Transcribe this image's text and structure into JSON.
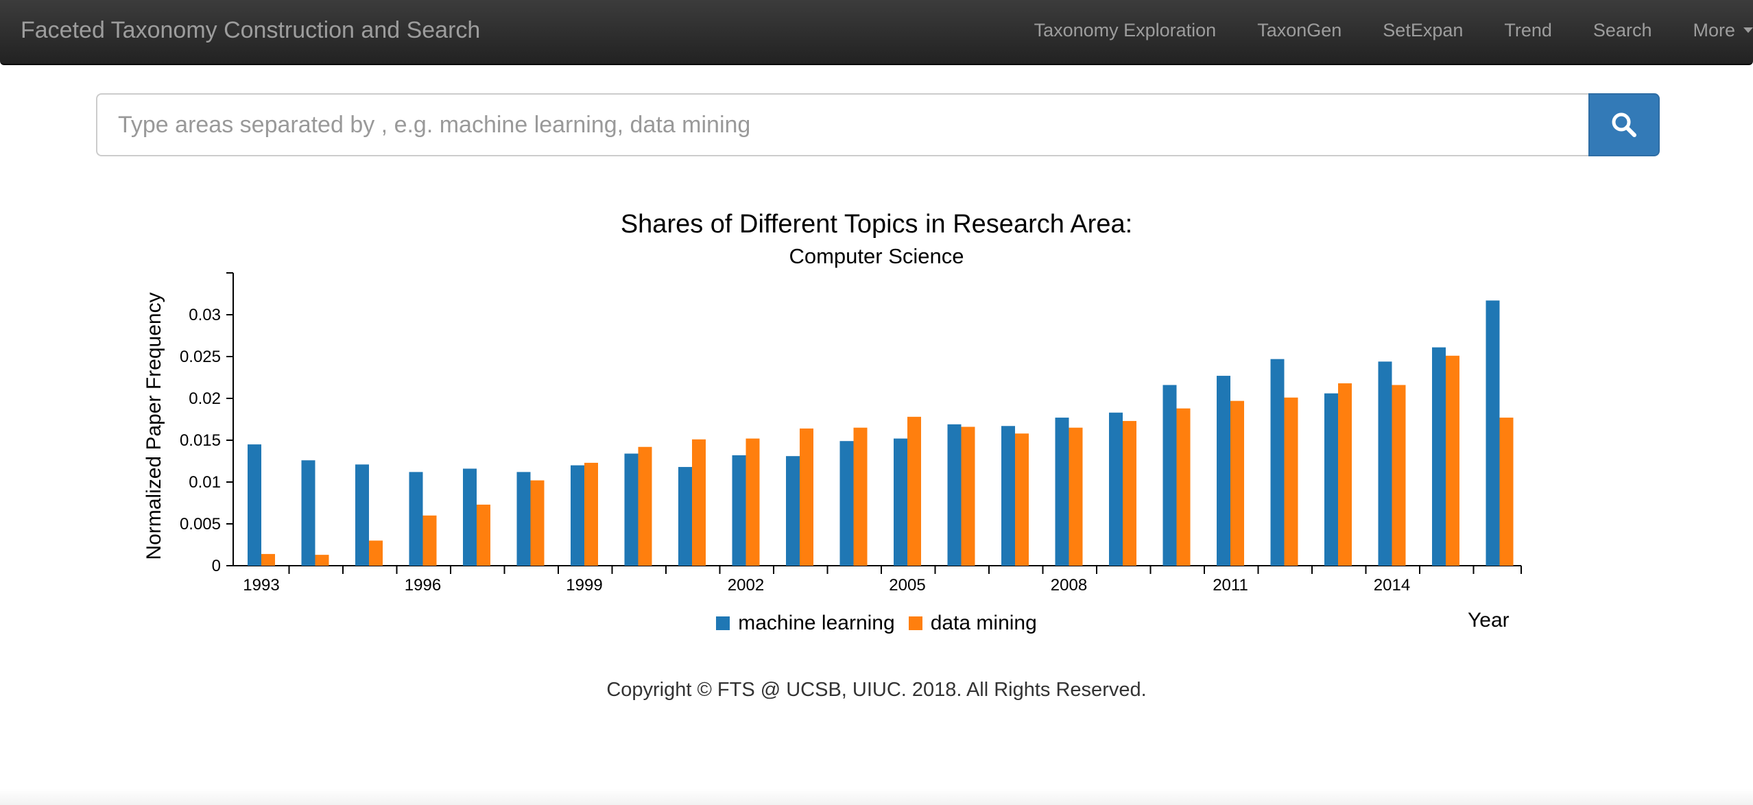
{
  "navbar": {
    "brand": "Faceted Taxonomy Construction and Search",
    "links": [
      "Taxonomy Exploration",
      "TaxonGen",
      "SetExpan",
      "Trend",
      "Search"
    ],
    "more": "More"
  },
  "search": {
    "placeholder": "Type areas separated by , e.g. machine learning, data mining",
    "value": "",
    "button_icon": "search-icon"
  },
  "footer": {
    "text": "Copyright © FTS @ UCSB, UIUC. 2018. All Rights Reserved."
  },
  "colors": {
    "navbar_bg": "#222222",
    "primary": "#337ab7",
    "series_1": "#1f77b4",
    "series_2": "#ff7f0e"
  },
  "chart_data": {
    "type": "bar",
    "title": "Shares of Different Topics in Research Area:",
    "subtitle": "Computer Science",
    "xlabel": "Year",
    "ylabel": "Normalized Paper Frequency",
    "categories": [
      "1993",
      "1994",
      "1995",
      "1996",
      "1997",
      "1998",
      "1999",
      "2000",
      "2001",
      "2002",
      "2003",
      "2004",
      "2005",
      "2006",
      "2007",
      "2008",
      "2009",
      "2010",
      "2011",
      "2012",
      "2013",
      "2014",
      "2015",
      "2016"
    ],
    "x_tick_labels": [
      "1993",
      "1996",
      "1999",
      "2002",
      "2005",
      "2008",
      "2011",
      "2014"
    ],
    "y_ticks": [
      "0",
      "0.005",
      "0.01",
      "0.015",
      "0.02",
      "0.025",
      "0.03"
    ],
    "ylim": [
      0,
      0.035
    ],
    "grid": false,
    "legend_position": "bottom",
    "series": [
      {
        "name": "machine learning",
        "color": "#1f77b4",
        "values": [
          0.0145,
          0.0126,
          0.0121,
          0.0112,
          0.0116,
          0.0112,
          0.012,
          0.0134,
          0.0118,
          0.0132,
          0.0131,
          0.0149,
          0.0152,
          0.0169,
          0.0167,
          0.0177,
          0.0183,
          0.0216,
          0.0227,
          0.0247,
          0.0206,
          0.0244,
          0.0261,
          0.0317
        ]
      },
      {
        "name": "data mining",
        "color": "#ff7f0e",
        "values": [
          0.0014,
          0.0013,
          0.003,
          0.006,
          0.0073,
          0.0102,
          0.0123,
          0.0142,
          0.0151,
          0.0152,
          0.0164,
          0.0165,
          0.0178,
          0.0166,
          0.0158,
          0.0165,
          0.0173,
          0.0188,
          0.0197,
          0.0201,
          0.0218,
          0.0216,
          0.0251,
          0.0177
        ]
      }
    ]
  }
}
